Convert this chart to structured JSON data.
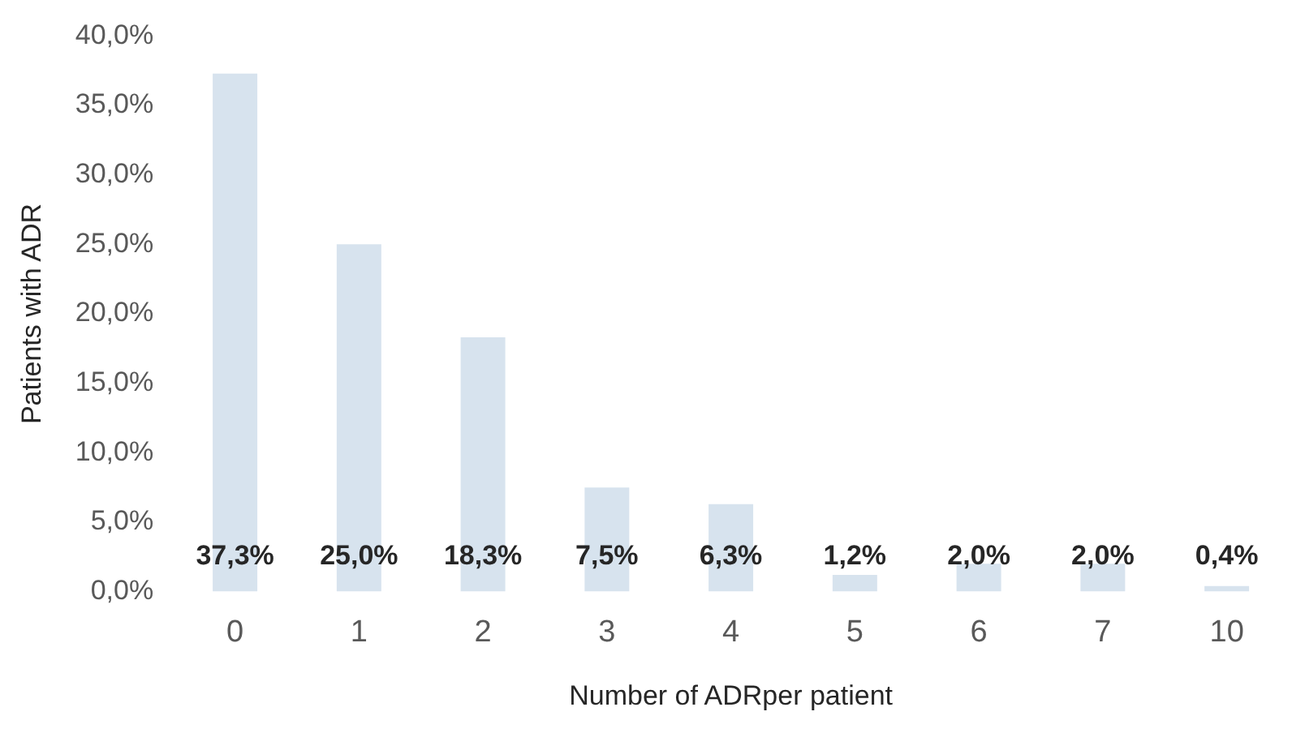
{
  "chart_data": {
    "type": "bar",
    "xlabel": "Number of ADRper patient",
    "ylabel": "Patients with ADR",
    "categories": [
      "0",
      "1",
      "2",
      "3",
      "4",
      "5",
      "6",
      "7",
      "10"
    ],
    "values": [
      37.3,
      25.0,
      18.3,
      7.5,
      6.3,
      1.2,
      2.0,
      2.0,
      0.4
    ],
    "value_labels": [
      "37,3%",
      "25,0%",
      "18,3%",
      "7,5%",
      "6,3%",
      "1,2%",
      "2,0%",
      "2,0%",
      "0,4%"
    ],
    "color": "#d7e3ee",
    "ylim": [
      0,
      40
    ],
    "yticks": [
      {
        "value": 0,
        "label": "0,0%"
      },
      {
        "value": 5,
        "label": "5,0%"
      },
      {
        "value": 10,
        "label": "10,0%"
      },
      {
        "value": 15,
        "label": "15,0%"
      },
      {
        "value": 20,
        "label": "20,0%"
      },
      {
        "value": 25,
        "label": "25,0%"
      },
      {
        "value": 30,
        "label": "30,0%"
      },
      {
        "value": 35,
        "label": "35,0%"
      },
      {
        "value": 40,
        "label": "40,0%"
      }
    ],
    "grid": false,
    "legend": false
  }
}
